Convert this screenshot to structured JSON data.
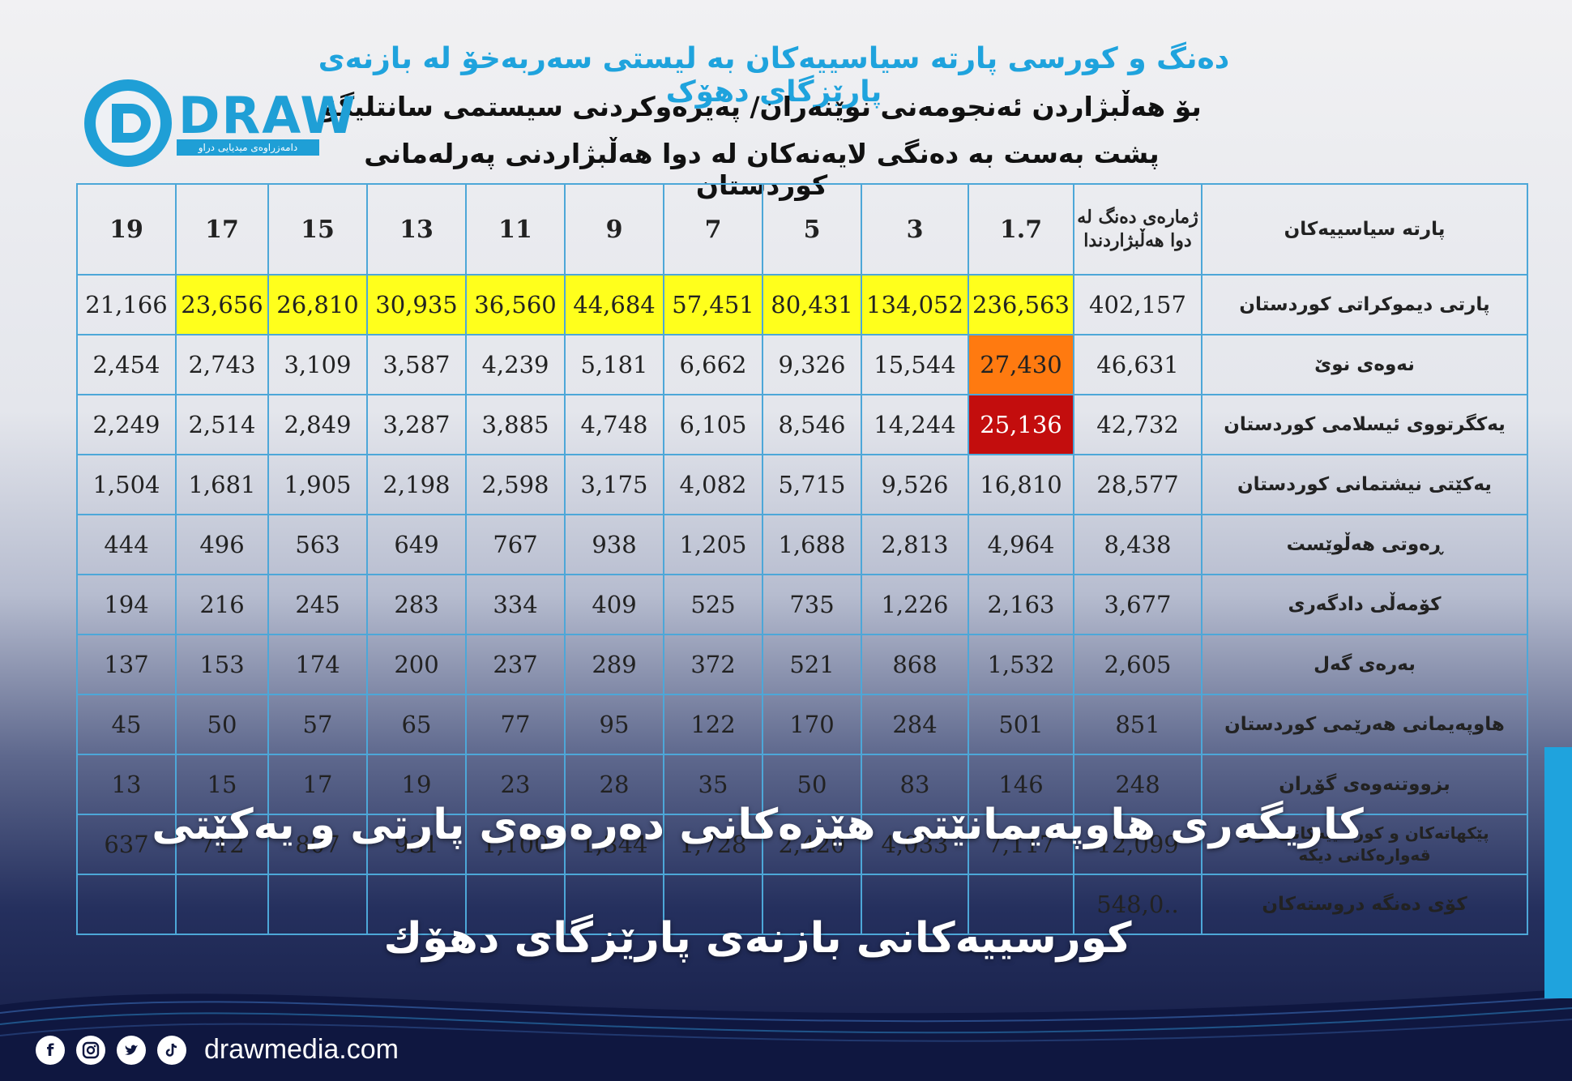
{
  "header": {
    "title_1": "دەنگ و کورسی پارتە سیاسییەکان بە لیستی سەربەخۆ لە بازنەی پارێزگای دهۆک",
    "title_2": "بۆ هەڵبژاردن ئەنجومەنی نوێنەران/ پەیرەوکردنی سیستمی سانتلیگۆ",
    "title_3": "پشت بەست بە دەنگی لایەنەکان لە دوا هەڵبژاردنی پەرلەمانی کوردستان"
  },
  "logo": {
    "word": "DRAW",
    "subtitle": "دامەزراوەی میدیایی دراو",
    "colors": {
      "brand": "#1fa3dd"
    }
  },
  "table": {
    "header_party": "پارتە سیاسییەکان",
    "header_votes": "ژمارەی دەنگ لە دوا هەڵبژاردندا",
    "divisors": [
      "1.7",
      "3",
      "5",
      "7",
      "9",
      "11",
      "13",
      "15",
      "17",
      "19"
    ],
    "rows": [
      {
        "party": "پارتی دیموکراتی کوردستان",
        "votes": "402,157",
        "cells": [
          "236,563",
          "134,052",
          "80,431",
          "57,451",
          "44,684",
          "36,560",
          "30,935",
          "26,810",
          "23,656",
          "21,166"
        ],
        "highlight": [
          "yellow",
          "yellow",
          "yellow",
          "yellow",
          "yellow",
          "yellow",
          "yellow",
          "yellow",
          "yellow",
          ""
        ]
      },
      {
        "party": "نەوەی نوێ",
        "votes": "46,631",
        "cells": [
          "27,430",
          "15,544",
          "9,326",
          "6,662",
          "5,181",
          "4,239",
          "3,587",
          "3,109",
          "2,743",
          "2,454"
        ],
        "highlight": [
          "orange",
          "",
          "",
          "",
          "",
          "",
          "",
          "",
          "",
          ""
        ]
      },
      {
        "party": "یەکگرتووی ئیسلامی کوردستان",
        "votes": "42,732",
        "cells": [
          "25,136",
          "14,244",
          "8,546",
          "6,105",
          "4,748",
          "3,885",
          "3,287",
          "2,849",
          "2,514",
          "2,249"
        ],
        "highlight": [
          "red",
          "",
          "",
          "",
          "",
          "",
          "",
          "",
          "",
          ""
        ]
      },
      {
        "party": "یەکێتی نیشتمانی کوردستان",
        "votes": "28,577",
        "cells": [
          "16,810",
          "9,526",
          "5,715",
          "4,082",
          "3,175",
          "2,598",
          "2,198",
          "1,905",
          "1,681",
          "1,504"
        ],
        "highlight": [
          "",
          "",
          "",
          "",
          "",
          "",
          "",
          "",
          "",
          ""
        ]
      },
      {
        "party": "ڕەوتی هەڵوێست",
        "votes": "8,438",
        "cells": [
          "4,964",
          "2,813",
          "1,688",
          "1,205",
          "938",
          "767",
          "649",
          "563",
          "496",
          "444"
        ],
        "highlight": [
          "",
          "",
          "",
          "",
          "",
          "",
          "",
          "",
          "",
          ""
        ]
      },
      {
        "party": "کۆمەڵی دادگەری",
        "votes": "3,677",
        "cells": [
          "2,163",
          "1,226",
          "735",
          "525",
          "409",
          "334",
          "283",
          "245",
          "216",
          "194"
        ],
        "highlight": [
          "",
          "",
          "",
          "",
          "",
          "",
          "",
          "",
          "",
          ""
        ]
      },
      {
        "party": "بەرەی گەل",
        "votes": "2,605",
        "cells": [
          "1,532",
          "868",
          "521",
          "372",
          "289",
          "237",
          "200",
          "174",
          "153",
          "137"
        ],
        "highlight": [
          "",
          "",
          "",
          "",
          "",
          "",
          "",
          "",
          "",
          ""
        ]
      },
      {
        "party": "هاوپەیمانی هەرێمی کوردستان",
        "votes": "851",
        "cells": [
          "501",
          "284",
          "170",
          "122",
          "95",
          "77",
          "65",
          "57",
          "50",
          "45"
        ],
        "highlight": [
          "",
          "",
          "",
          "",
          "",
          "",
          "",
          "",
          "",
          ""
        ]
      },
      {
        "party": "بزووتنەوەی گۆڕان",
        "votes": "248",
        "cells": [
          "146",
          "83",
          "50",
          "35",
          "28",
          "23",
          "19",
          "17",
          "15",
          "13"
        ],
        "highlight": [
          "",
          "",
          "",
          "",
          "",
          "",
          "",
          "",
          "",
          ""
        ]
      },
      {
        "party": "پێکهاتەکان و کورسییەکانی تر و قەوارەکانی دیکە",
        "votes": "12,099",
        "cells": [
          "7,117",
          "4,033",
          "2,420",
          "1,728",
          "1,344",
          "1,100",
          "931",
          "807",
          "712",
          "637"
        ],
        "highlight": [
          "",
          "",
          "",
          "",
          "",
          "",
          "",
          "",
          "",
          ""
        ]
      },
      {
        "party": "کۆی دەنگە دروستەکان",
        "votes": "548,0..",
        "cells": [
          "",
          "",
          "",
          "",
          "",
          "",
          "",
          "",
          "",
          ""
        ],
        "highlight": [
          "",
          "",
          "",
          "",
          "",
          "",
          "",
          "",
          "",
          ""
        ]
      }
    ]
  },
  "overlay": {
    "line_1": "کاریگەری هاوپەیمانێتی هێزەکانی دەرەوەی پارتی و یەکێتی",
    "line_2": "کورسییەکانی بازنەی پارێزگای دهۆك"
  },
  "footer": {
    "site": "drawmedia.com",
    "icons": [
      "facebook-icon",
      "instagram-icon",
      "twitter-icon",
      "tiktok-icon"
    ]
  }
}
